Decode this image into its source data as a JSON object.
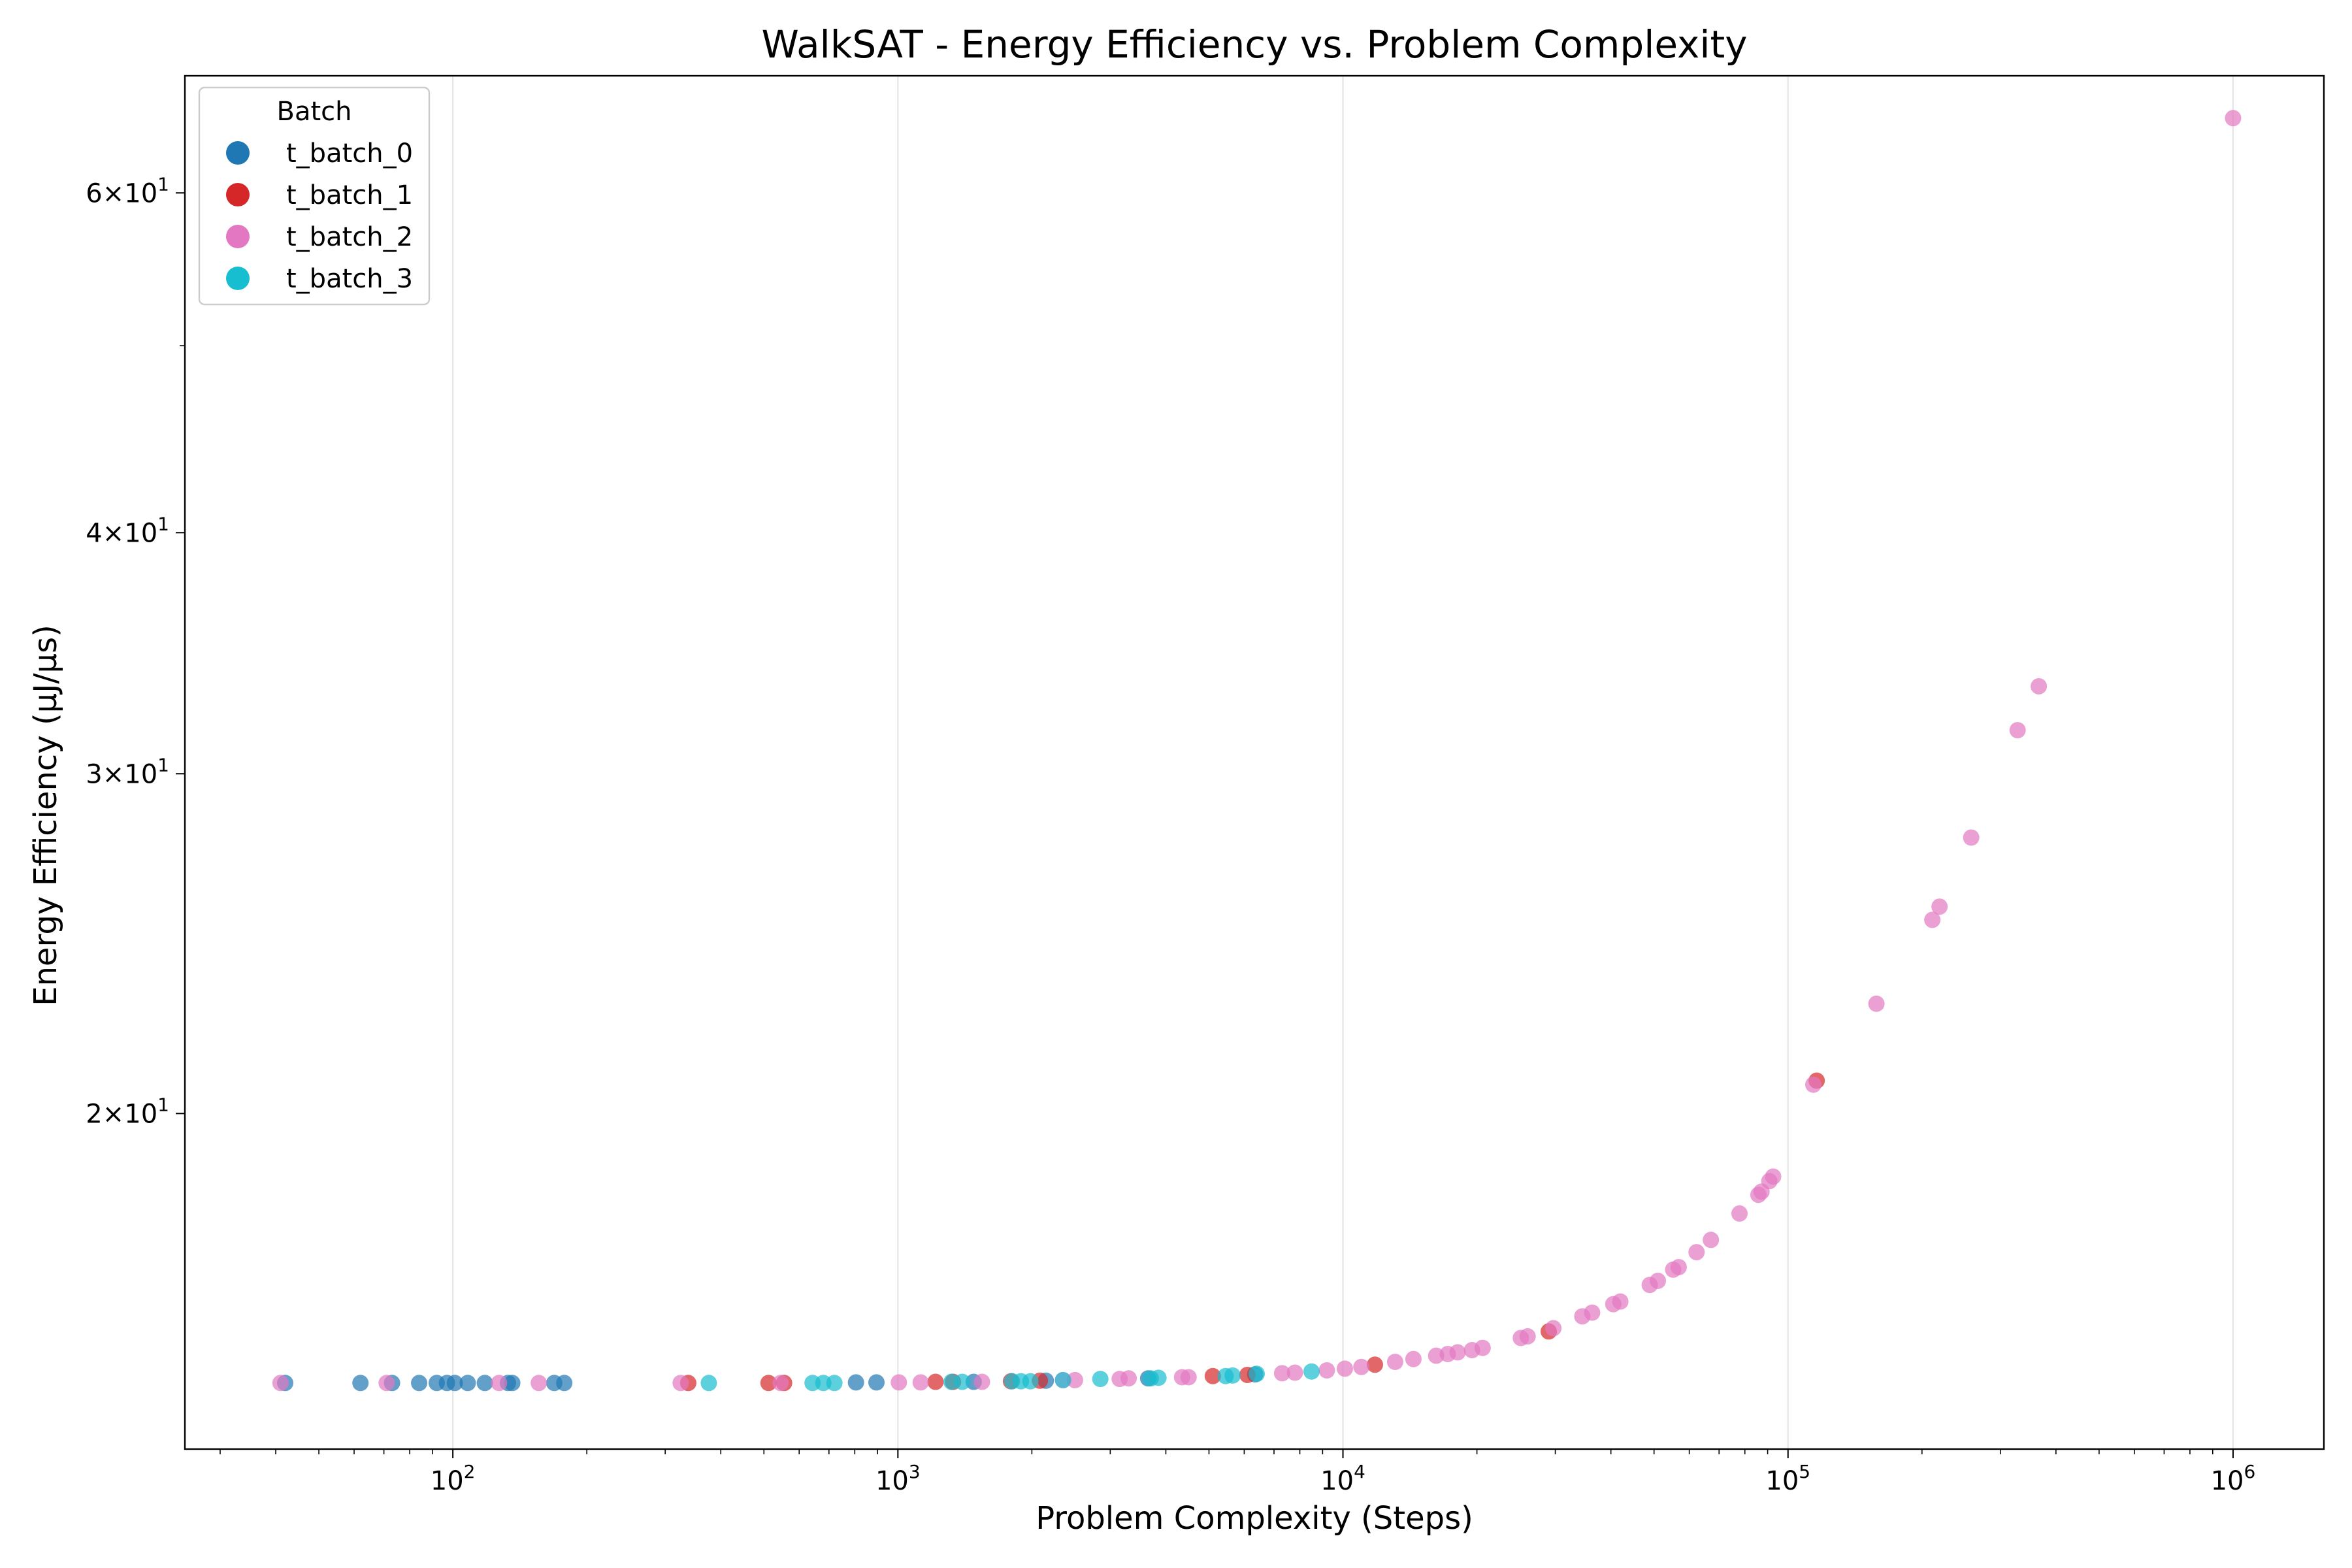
{
  "chart_data": {
    "type": "scatter",
    "title": "WalkSAT - Energy Efficiency vs. Problem Complexity",
    "xlabel": "Problem Complexity (Steps)",
    "ylabel": "Energy Efficiency (μJ/μs)",
    "xscale": "log",
    "yscale": "log",
    "xlim": [
      25,
      1600000
    ],
    "ylim": [
      13.4,
      69
    ],
    "grid": "x-major",
    "legend": {
      "title": "Batch",
      "placement": "top-left"
    },
    "x_ticks": [
      {
        "base": "10",
        "exp": "2",
        "value": 100
      },
      {
        "base": "10",
        "exp": "3",
        "value": 1000
      },
      {
        "base": "10",
        "exp": "4",
        "value": 10000
      },
      {
        "base": "10",
        "exp": "5",
        "value": 100000
      },
      {
        "base": "10",
        "exp": "6",
        "value": 1000000
      }
    ],
    "y_ticks": [
      {
        "mantissa": "2×10",
        "exp": "1",
        "value": 20
      },
      {
        "mantissa": "3×10",
        "exp": "1",
        "value": 30
      },
      {
        "mantissa": "4×10",
        "exp": "1",
        "value": 40
      },
      {
        "mantissa": "6×10",
        "exp": "1",
        "value": 60
      }
    ],
    "series": [
      {
        "name": "t_batch_0",
        "color": "#1f77b4",
        "points": [
          [
            42,
            14.5
          ],
          [
            62,
            14.5
          ],
          [
            73,
            14.5
          ],
          [
            84,
            14.5
          ],
          [
            92,
            14.5
          ],
          [
            97,
            14.5
          ],
          [
            101,
            14.5
          ],
          [
            108,
            14.5
          ],
          [
            118,
            14.5
          ],
          [
            133,
            14.5
          ],
          [
            136,
            14.5
          ],
          [
            169,
            14.5
          ],
          [
            178,
            14.5
          ],
          [
            805,
            14.51
          ],
          [
            895,
            14.51
          ],
          [
            1480,
            14.52
          ],
          [
            2150,
            14.54
          ],
          [
            3650,
            14.58
          ],
          [
            6350,
            14.65
          ]
        ]
      },
      {
        "name": "t_batch_1",
        "color": "#d62728",
        "points": [
          [
            338,
            14.5
          ],
          [
            512,
            14.5
          ],
          [
            555,
            14.5
          ],
          [
            1215,
            14.52
          ],
          [
            1330,
            14.52
          ],
          [
            1795,
            14.53
          ],
          [
            2085,
            14.54
          ],
          [
            5100,
            14.62
          ],
          [
            6100,
            14.64
          ],
          [
            11800,
            14.82
          ],
          [
            29000,
            15.42
          ],
          [
            116000,
            20.8
          ]
        ]
      },
      {
        "name": "t_batch_2",
        "color": "#e377c2",
        "points": [
          [
            41,
            14.5
          ],
          [
            71,
            14.5
          ],
          [
            127,
            14.5
          ],
          [
            156,
            14.5
          ],
          [
            325,
            14.5
          ],
          [
            545,
            14.5
          ],
          [
            1005,
            14.51
          ],
          [
            1125,
            14.51
          ],
          [
            1545,
            14.52
          ],
          [
            2350,
            14.55
          ],
          [
            2500,
            14.55
          ],
          [
            3150,
            14.57
          ],
          [
            3300,
            14.58
          ],
          [
            4350,
            14.6
          ],
          [
            4500,
            14.6
          ],
          [
            7300,
            14.67
          ],
          [
            7800,
            14.68
          ],
          [
            9200,
            14.72
          ],
          [
            10100,
            14.75
          ],
          [
            11000,
            14.78
          ],
          [
            13100,
            14.87
          ],
          [
            14400,
            14.92
          ],
          [
            16200,
            14.98
          ],
          [
            17200,
            15.01
          ],
          [
            18100,
            15.04
          ],
          [
            19500,
            15.08
          ],
          [
            20600,
            15.12
          ],
          [
            25100,
            15.3
          ],
          [
            26000,
            15.33
          ],
          [
            29700,
            15.48
          ],
          [
            34500,
            15.7
          ],
          [
            36300,
            15.77
          ],
          [
            40500,
            15.93
          ],
          [
            42000,
            15.98
          ],
          [
            48900,
            16.3
          ],
          [
            51000,
            16.38
          ],
          [
            55200,
            16.6
          ],
          [
            56800,
            16.65
          ],
          [
            62300,
            16.95
          ],
          [
            67100,
            17.2
          ],
          [
            77800,
            17.75
          ],
          [
            85800,
            18.15
          ],
          [
            87200,
            18.22
          ],
          [
            90800,
            18.45
          ],
          [
            92600,
            18.55
          ],
          [
            114000,
            20.7
          ],
          [
            158000,
            22.8
          ],
          [
            211000,
            25.2
          ],
          [
            219000,
            25.6
          ],
          [
            258000,
            27.8
          ],
          [
            328000,
            31.6
          ],
          [
            366000,
            33.3
          ],
          [
            1000000,
            65.6
          ]
        ]
      },
      {
        "name": "t_batch_3",
        "color": "#17becf",
        "points": [
          [
            376,
            14.5
          ],
          [
            643,
            14.5
          ],
          [
            680,
            14.5
          ],
          [
            720,
            14.5
          ],
          [
            1320,
            14.52
          ],
          [
            1395,
            14.52
          ],
          [
            1805,
            14.53
          ],
          [
            1890,
            14.53
          ],
          [
            1985,
            14.53
          ],
          [
            2350,
            14.55
          ],
          [
            2850,
            14.57
          ],
          [
            3700,
            14.58
          ],
          [
            3850,
            14.59
          ],
          [
            5450,
            14.62
          ],
          [
            5650,
            14.63
          ],
          [
            6400,
            14.66
          ],
          [
            8500,
            14.7
          ]
        ]
      }
    ]
  }
}
